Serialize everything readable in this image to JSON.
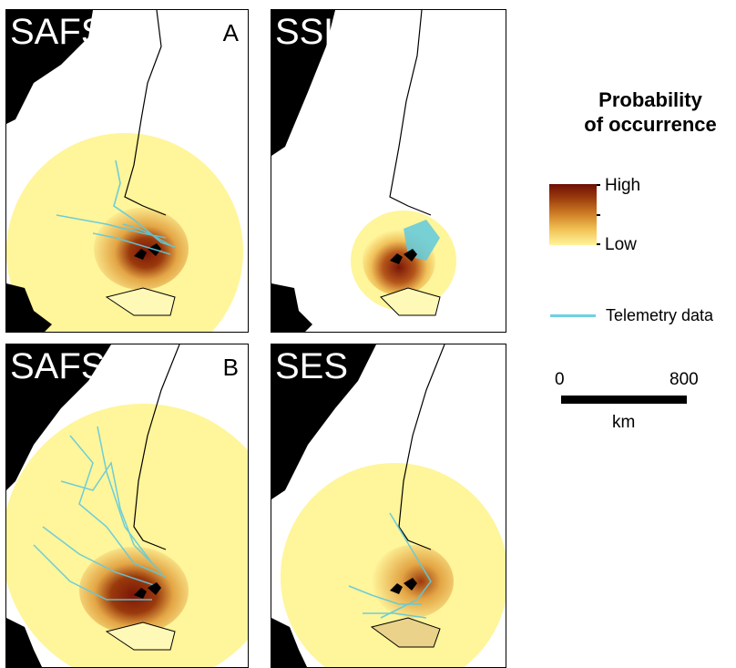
{
  "panels": [
    {
      "id": "A",
      "species": "SAFS",
      "letter": "A"
    },
    {
      "id": "SSL",
      "species": "SSL",
      "letter": ""
    },
    {
      "id": "B",
      "species": "SAFS",
      "letter": "B"
    },
    {
      "id": "SES",
      "species": "SES",
      "letter": ""
    }
  ],
  "legend": {
    "title_line1": "Probability",
    "title_line2": "of occurrence",
    "high_label": "High",
    "low_label": "Low",
    "telemetry_label": "Telemetry data",
    "colors": {
      "high": "#6d0f05",
      "mid": "#cd7c24",
      "low": "#fff59a",
      "telemetry": "#6fd0e2",
      "land_other": "#000000"
    }
  },
  "scale": {
    "start_label": "0",
    "end_label": "800",
    "unit": "km"
  }
}
